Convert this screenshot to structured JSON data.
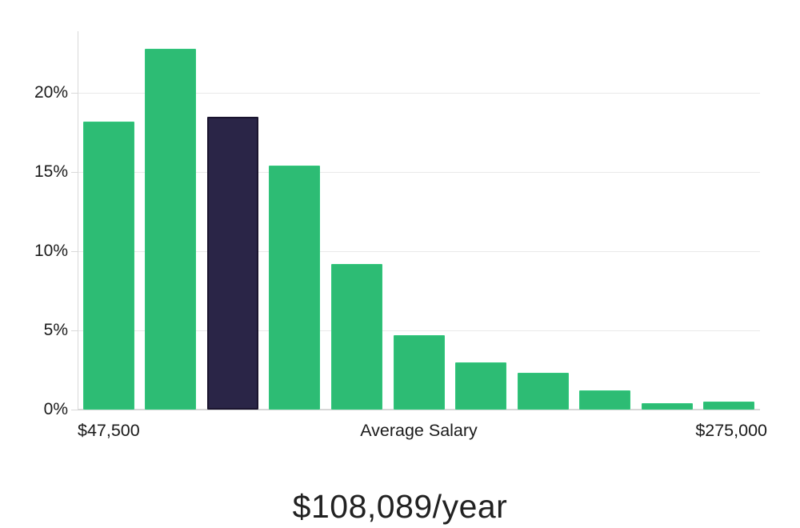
{
  "chart_data": {
    "type": "bar",
    "title": "$108,089/year",
    "x_axis": {
      "min_label": "$47,500",
      "center_label": "Average Salary",
      "max_label": "$275,000"
    },
    "y_axis": {
      "ticks": [
        0,
        5,
        10,
        15,
        20
      ],
      "tick_labels": [
        "0%",
        "5%",
        "10%",
        "15%",
        "20%"
      ],
      "ylim": [
        0,
        23.9
      ],
      "grid": true
    },
    "series": [
      {
        "name": "salary-distribution",
        "values": [
          18.2,
          22.8,
          18.5,
          15.4,
          9.2,
          4.7,
          3.0,
          2.3,
          1.2,
          0.4,
          0.5
        ],
        "highlighted_index": 2
      }
    ],
    "legend": false,
    "colors": {
      "bar": "#2dbc74",
      "bar_edge": "#31c77c",
      "highlight_bar": "#2a2547",
      "highlight_border": "#1a142e",
      "gridline": "#e9e9e9",
      "axis_line": "#d9d9d9",
      "label_text": "#1a1a1a",
      "title_text": "#212121"
    }
  }
}
